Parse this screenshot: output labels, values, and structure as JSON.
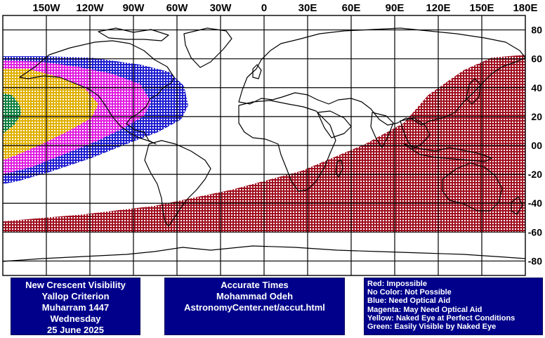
{
  "map": {
    "longitude_labels": [
      "150W",
      "120W",
      "90W",
      "60W",
      "30W",
      "0",
      "30E",
      "60E",
      "90E",
      "120E",
      "150E",
      "180E"
    ],
    "latitude_labels": [
      "80",
      "60",
      "40",
      "20",
      "00",
      "-20",
      "-40",
      "-60",
      "-80"
    ],
    "colors": {
      "impossible": "#a01020",
      "need_optical_aid": "#2020d0",
      "may_need_optical_aid": "#e020e0",
      "perfect_conditions": "#e0b000",
      "naked_eye": "#108040",
      "coastline": "#000000",
      "grid": "#000000"
    }
  },
  "title_box": {
    "lines": [
      "New Crescent Visibility",
      "Yallop Criterion",
      "Muharram 1447",
      "Wednesday",
      "25 June 2025"
    ]
  },
  "credit_box": {
    "lines": [
      "Accurate Times",
      "Mohammad Odeh",
      "AstronomyCenter.net/accut.html"
    ]
  },
  "legend_box": {
    "lines": [
      "Red: Impossible",
      "No Color: Not Possible",
      "Blue: Need Optical Aid",
      "Magenta: May Need Optical Aid",
      "Yellow: Naked Eye at Perfect Conditions",
      "Green: Easily Visible by Naked Eye"
    ]
  }
}
